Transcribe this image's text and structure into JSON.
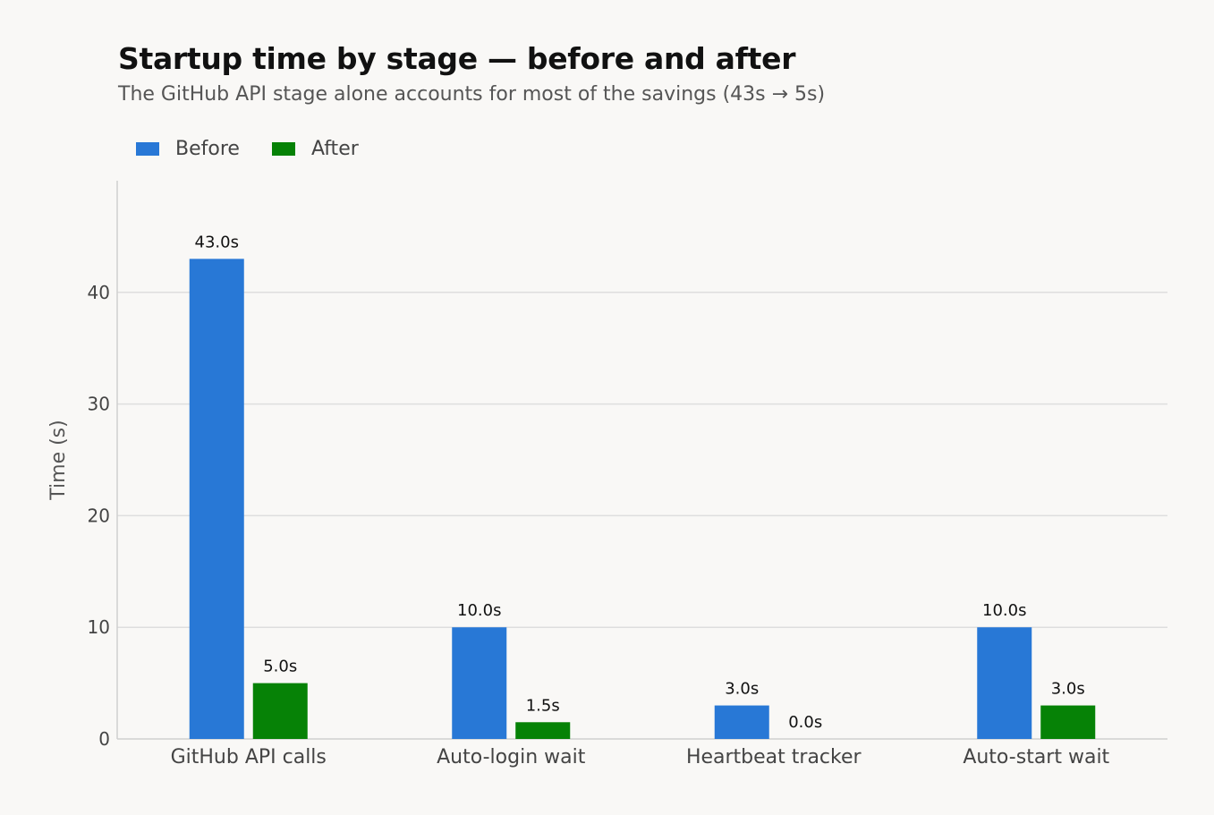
{
  "chart_data": {
    "type": "bar",
    "title": "Startup time by stage — before and after",
    "subtitle": "The GitHub API stage alone accounts for most of the savings (43s → 5s)",
    "xlabel": "",
    "ylabel": "Time (s)",
    "categories": [
      "GitHub API calls",
      "Auto-login wait",
      "Heartbeat tracker",
      "Auto-start wait"
    ],
    "series": [
      {
        "name": "Before",
        "values": [
          43.0,
          10.0,
          3.0,
          10.0
        ],
        "color": "#2878d6"
      },
      {
        "name": "After",
        "values": [
          5.0,
          1.5,
          0.0,
          3.0
        ],
        "color": "#068206"
      }
    ],
    "data_labels": [
      [
        "43.0s",
        "10.0s",
        "3.0s",
        "10.0s"
      ],
      [
        "5.0s",
        "1.5s",
        "0.0s",
        "3.0s"
      ]
    ],
    "ylim": [
      0,
      50
    ],
    "yticks": [
      0,
      10,
      20,
      30,
      40
    ],
    "ytick_labels": [
      "0",
      "10",
      "20",
      "30",
      "40"
    ],
    "grid": "horizontal",
    "legend_position": "top-left"
  }
}
